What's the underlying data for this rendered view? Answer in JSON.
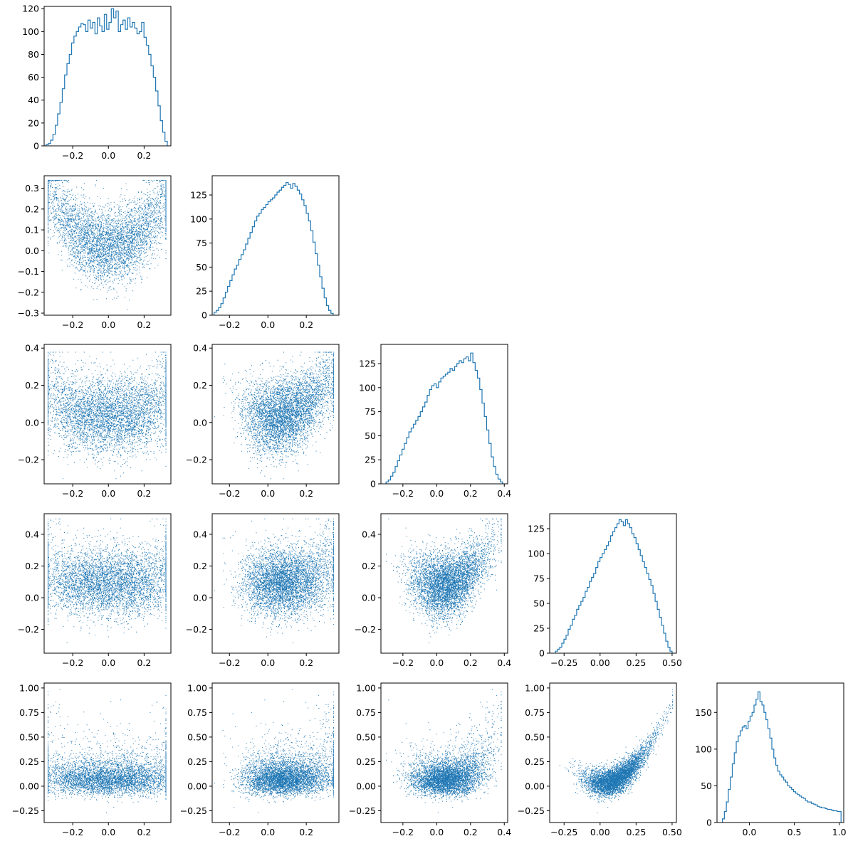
{
  "figure": {
    "type": "corner-plot"
  },
  "chart_data": [
    {
      "type": "histogram",
      "row": 0,
      "col": 0,
      "xlim": [
        -0.36,
        0.35
      ],
      "ylim": [
        0,
        122
      ],
      "xticks": [
        -0.2,
        0.0,
        0.2
      ],
      "xtick_labels": [
        "−0.2",
        "0.0",
        "0.2"
      ],
      "yticks": [
        0,
        20,
        40,
        60,
        80,
        100,
        120
      ],
      "ytick_labels": [
        "0",
        "20",
        "40",
        "60",
        "80",
        "100",
        "120"
      ],
      "hist": {
        "start": -0.35,
        "end": 0.33,
        "counts": [
          1,
          2,
          5,
          10,
          18,
          28,
          38,
          50,
          62,
          72,
          80,
          90,
          96,
          100,
          104,
          107,
          106,
          100,
          110,
          103,
          108,
          98,
          112,
          105,
          100,
          115,
          102,
          108,
          120,
          112,
          118,
          100,
          106,
          110,
          102,
          112,
          104,
          108,
          103,
          98,
          100,
          108,
          95,
          88,
          80,
          70,
          60,
          48,
          35,
          22,
          12,
          4
        ]
      },
      "color": "#1f77b4"
    },
    {
      "type": "scatter",
      "row": 1,
      "col": 0,
      "xlim": [
        -0.36,
        0.35
      ],
      "ylim": [
        -0.31,
        0.36
      ],
      "xticks": [
        -0.2,
        0.0,
        0.2
      ],
      "xtick_labels": [
        "−0.2",
        "0.0",
        "0.2"
      ],
      "yticks": [
        -0.3,
        -0.2,
        -0.1,
        0.0,
        0.1,
        0.2,
        0.3
      ],
      "ytick_labels": [
        "−0.3",
        "−0.2",
        "−0.1",
        "0.0",
        "0.1",
        "0.2",
        "0.3"
      ],
      "n_points": 5000,
      "color": "#1f77b4"
    },
    {
      "type": "histogram",
      "row": 1,
      "col": 1,
      "xlim": [
        -0.29,
        0.37
      ],
      "ylim": [
        0,
        145
      ],
      "xticks": [
        -0.2,
        0.0,
        0.2
      ],
      "xtick_labels": [
        "−0.2",
        "0.0",
        "0.2"
      ],
      "yticks": [
        0,
        25,
        50,
        75,
        100,
        125
      ],
      "ytick_labels": [
        "0",
        "25",
        "50",
        "75",
        "100",
        "125"
      ],
      "hist": {
        "start": -0.28,
        "end": 0.34,
        "counts": [
          3,
          5,
          8,
          12,
          18,
          24,
          30,
          36,
          42,
          48,
          52,
          58,
          63,
          68,
          74,
          80,
          86,
          92,
          98,
          103,
          106,
          110,
          112,
          115,
          118,
          120,
          122,
          125,
          128,
          130,
          133,
          135,
          138,
          136,
          132,
          137,
          134,
          130,
          126,
          120,
          114,
          106,
          98,
          88,
          76,
          64,
          52,
          40,
          28,
          18,
          10,
          5,
          2
        ]
      },
      "color": "#1f77b4"
    },
    {
      "type": "scatter",
      "row": 2,
      "col": 0,
      "xlim": [
        -0.36,
        0.35
      ],
      "ylim": [
        -0.33,
        0.42
      ],
      "xticks": [
        -0.2,
        0.0,
        0.2
      ],
      "xtick_labels": [
        "−0.2",
        "0.0",
        "0.2"
      ],
      "yticks": [
        -0.2,
        0.0,
        0.2,
        0.4
      ],
      "ytick_labels": [
        "−0.2",
        "0.0",
        "0.2",
        "0.4"
      ],
      "n_points": 5000,
      "color": "#1f77b4"
    },
    {
      "type": "scatter",
      "row": 2,
      "col": 1,
      "xlim": [
        -0.29,
        0.37
      ],
      "ylim": [
        -0.33,
        0.42
      ],
      "xticks": [
        -0.2,
        0.0,
        0.2
      ],
      "xtick_labels": [
        "−0.2",
        "0.0",
        "0.2"
      ],
      "yticks": [
        -0.2,
        0.0,
        0.2,
        0.4
      ],
      "ytick_labels": [
        "−0.2",
        "0.0",
        "0.2",
        "0.4"
      ],
      "n_points": 5000,
      "color": "#1f77b4"
    },
    {
      "type": "histogram",
      "row": 2,
      "col": 2,
      "xlim": [
        -0.33,
        0.42
      ],
      "ylim": [
        0,
        145
      ],
      "xticks": [
        -0.2,
        0.0,
        0.2,
        0.4
      ],
      "xtick_labels": [
        "−0.2",
        "0.0",
        "0.2",
        "0.4"
      ],
      "yticks": [
        0,
        25,
        50,
        75,
        100,
        125
      ],
      "ytick_labels": [
        "0",
        "25",
        "50",
        "75",
        "100",
        "125"
      ],
      "hist": {
        "start": -0.3,
        "end": 0.39,
        "counts": [
          2,
          4,
          8,
          12,
          18,
          24,
          30,
          36,
          42,
          48,
          54,
          58,
          62,
          66,
          70,
          75,
          80,
          85,
          92,
          98,
          102,
          104,
          100,
          106,
          110,
          112,
          114,
          116,
          120,
          118,
          122,
          125,
          128,
          126,
          130,
          132,
          128,
          136,
          126,
          118,
          110,
          98,
          84,
          70,
          56,
          42,
          28,
          18,
          10,
          5,
          2
        ]
      },
      "color": "#1f77b4"
    },
    {
      "type": "scatter",
      "row": 3,
      "col": 0,
      "xlim": [
        -0.36,
        0.35
      ],
      "ylim": [
        -0.35,
        0.53
      ],
      "xticks": [
        -0.2,
        0.0,
        0.2
      ],
      "xtick_labels": [
        "−0.2",
        "0.0",
        "0.2"
      ],
      "yticks": [
        -0.2,
        0.0,
        0.2,
        0.4
      ],
      "ytick_labels": [
        "−0.2",
        "0.0",
        "0.2",
        "0.4"
      ],
      "n_points": 5000,
      "color": "#1f77b4"
    },
    {
      "type": "scatter",
      "row": 3,
      "col": 1,
      "xlim": [
        -0.29,
        0.37
      ],
      "ylim": [
        -0.35,
        0.53
      ],
      "xticks": [
        -0.2,
        0.0,
        0.2
      ],
      "xtick_labels": [
        "−0.2",
        "0.0",
        "0.2"
      ],
      "yticks": [
        -0.2,
        0.0,
        0.2,
        0.4
      ],
      "ytick_labels": [
        "−0.2",
        "0.0",
        "0.2",
        "0.4"
      ],
      "n_points": 5000,
      "color": "#1f77b4"
    },
    {
      "type": "scatter",
      "row": 3,
      "col": 2,
      "xlim": [
        -0.33,
        0.42
      ],
      "ylim": [
        -0.35,
        0.53
      ],
      "xticks": [
        -0.2,
        0.0,
        0.2,
        0.4
      ],
      "xtick_labels": [
        "−0.2",
        "0.0",
        "0.2",
        "0.4"
      ],
      "yticks": [
        -0.2,
        0.0,
        0.2,
        0.4
      ],
      "ytick_labels": [
        "−0.2",
        "0.0",
        "0.2",
        "0.4"
      ],
      "n_points": 5000,
      "color": "#1f77b4"
    },
    {
      "type": "histogram",
      "row": 3,
      "col": 3,
      "xlim": [
        -0.35,
        0.53
      ],
      "ylim": [
        0,
        140
      ],
      "xticks": [
        -0.25,
        0.0,
        0.25,
        0.5
      ],
      "xtick_labels": [
        "−0.25",
        "0.00",
        "0.25",
        "0.50"
      ],
      "yticks": [
        0,
        25,
        50,
        75,
        100,
        125
      ],
      "ytick_labels": [
        "0",
        "25",
        "50",
        "75",
        "100",
        "125"
      ],
      "hist": {
        "start": -0.31,
        "end": 0.5,
        "counts": [
          2,
          4,
          6,
          10,
          14,
          18,
          24,
          28,
          34,
          38,
          44,
          48,
          52,
          56,
          62,
          66,
          72,
          76,
          80,
          86,
          92,
          96,
          100,
          104,
          108,
          112,
          118,
          122,
          126,
          130,
          134,
          132,
          128,
          134,
          130,
          126,
          120,
          116,
          110,
          104,
          98,
          92,
          86,
          80,
          74,
          68,
          60,
          52,
          44,
          36,
          28,
          20,
          12,
          6,
          2
        ]
      },
      "color": "#1f77b4"
    },
    {
      "type": "scatter",
      "row": 4,
      "col": 0,
      "xlim": [
        -0.36,
        0.35
      ],
      "ylim": [
        -0.37,
        1.05
      ],
      "xticks": [
        -0.2,
        0.0,
        0.2
      ],
      "xtick_labels": [
        "−0.2",
        "0.0",
        "0.2"
      ],
      "yticks": [
        -0.25,
        0.0,
        0.25,
        0.5,
        0.75,
        1.0
      ],
      "ytick_labels": [
        "−0.25",
        "0.00",
        "0.25",
        "0.50",
        "0.75",
        "1.00"
      ],
      "n_points": 5000,
      "color": "#1f77b4"
    },
    {
      "type": "scatter",
      "row": 4,
      "col": 1,
      "xlim": [
        -0.29,
        0.37
      ],
      "ylim": [
        -0.37,
        1.05
      ],
      "xticks": [
        -0.2,
        0.0,
        0.2
      ],
      "xtick_labels": [
        "−0.2",
        "0.0",
        "0.2"
      ],
      "yticks": [
        -0.25,
        0.0,
        0.25,
        0.5,
        0.75,
        1.0
      ],
      "ytick_labels": [
        "−0.25",
        "0.00",
        "0.25",
        "0.50",
        "0.75",
        "1.00"
      ],
      "n_points": 5000,
      "color": "#1f77b4"
    },
    {
      "type": "scatter",
      "row": 4,
      "col": 2,
      "xlim": [
        -0.33,
        0.42
      ],
      "ylim": [
        -0.37,
        1.05
      ],
      "xticks": [
        -0.2,
        0.0,
        0.2,
        0.4
      ],
      "xtick_labels": [
        "−0.2",
        "0.0",
        "0.2",
        "0.4"
      ],
      "yticks": [
        -0.25,
        0.0,
        0.25,
        0.5,
        0.75,
        1.0
      ],
      "ytick_labels": [
        "−0.25",
        "0.00",
        "0.25",
        "0.50",
        "0.75",
        "1.00"
      ],
      "n_points": 5000,
      "color": "#1f77b4"
    },
    {
      "type": "scatter",
      "row": 4,
      "col": 3,
      "xlim": [
        -0.35,
        0.53
      ],
      "ylim": [
        -0.37,
        1.05
      ],
      "xticks": [
        -0.25,
        0.0,
        0.25,
        0.5
      ],
      "xtick_labels": [
        "−0.25",
        "0.00",
        "0.25",
        "0.50"
      ],
      "yticks": [
        -0.25,
        0.0,
        0.25,
        0.5,
        0.75,
        1.0
      ],
      "ytick_labels": [
        "−0.25",
        "0.00",
        "0.25",
        "0.50",
        "0.75",
        "1.00"
      ],
      "n_points": 5000,
      "color": "#1f77b4"
    },
    {
      "type": "histogram",
      "row": 4,
      "col": 4,
      "xlim": [
        -0.36,
        1.05
      ],
      "ylim": [
        0,
        190
      ],
      "xticks": [
        0.0,
        0.5,
        1.0
      ],
      "xtick_labels": [
        "0.0",
        "0.5",
        "1.0"
      ],
      "yticks": [
        0,
        50,
        100,
        150
      ],
      "ytick_labels": [
        "0",
        "50",
        "100",
        "150"
      ],
      "hist": {
        "start": -0.3,
        "end": 1.02,
        "counts": [
          5,
          15,
          28,
          45,
          62,
          80,
          95,
          110,
          118,
          125,
          130,
          132,
          128,
          138,
          145,
          150,
          160,
          168,
          178,
          165,
          160,
          150,
          140,
          128,
          115,
          100,
          88,
          78,
          70,
          65,
          62,
          58,
          55,
          50,
          48,
          45,
          42,
          40,
          38,
          36,
          34,
          33,
          30,
          28,
          28,
          26,
          25,
          24,
          22,
          21,
          20,
          20,
          19,
          18,
          18,
          17,
          16,
          16,
          15,
          15
        ]
      },
      "color": "#1f77b4"
    }
  ]
}
